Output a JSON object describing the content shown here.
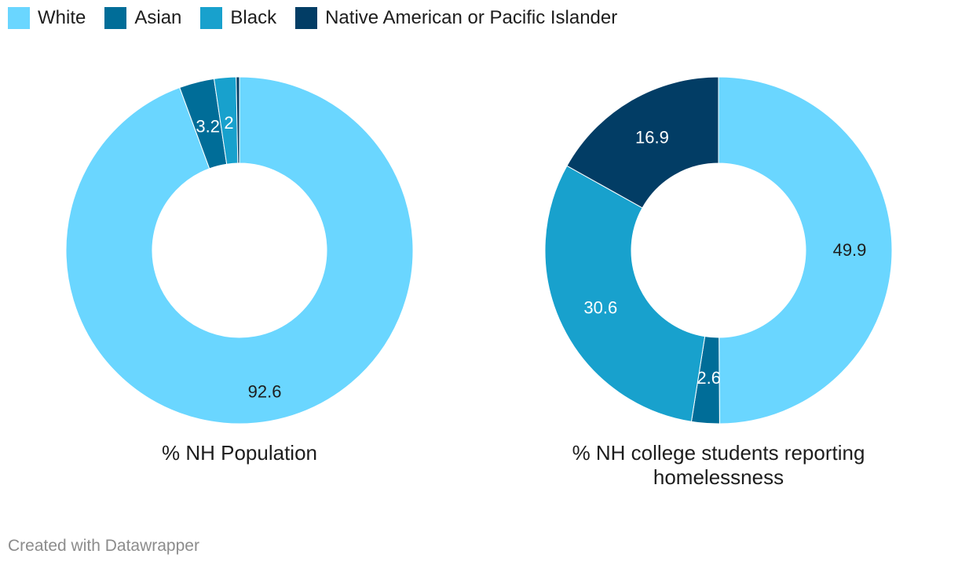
{
  "legend": [
    {
      "label": "White",
      "color": "#6ad6ff"
    },
    {
      "label": "Asian",
      "color": "#006d98"
    },
    {
      "label": "Black",
      "color": "#18a1cd"
    },
    {
      "label": "Native American or Pacific Islander",
      "color": "#023d65"
    }
  ],
  "chart_data": [
    {
      "type": "pie",
      "donut": true,
      "title": "% NH Population",
      "categories": [
        "White",
        "Asian",
        "Black",
        "Native American or Pacific Islander"
      ],
      "values": [
        92.6,
        3.2,
        2,
        0.3
      ],
      "data_labels": [
        "92.6",
        "3.2",
        "2",
        ""
      ]
    },
    {
      "type": "pie",
      "donut": true,
      "title": "% NH college students reporting homelessness",
      "categories": [
        "White",
        "Asian",
        "Black",
        "Native American or Pacific Islander"
      ],
      "values": [
        49.9,
        2.6,
        30.6,
        16.9
      ],
      "data_labels": [
        "49.9",
        "2.6",
        "30.6",
        "16.9"
      ]
    }
  ],
  "footer": "Created with Datawrapper"
}
